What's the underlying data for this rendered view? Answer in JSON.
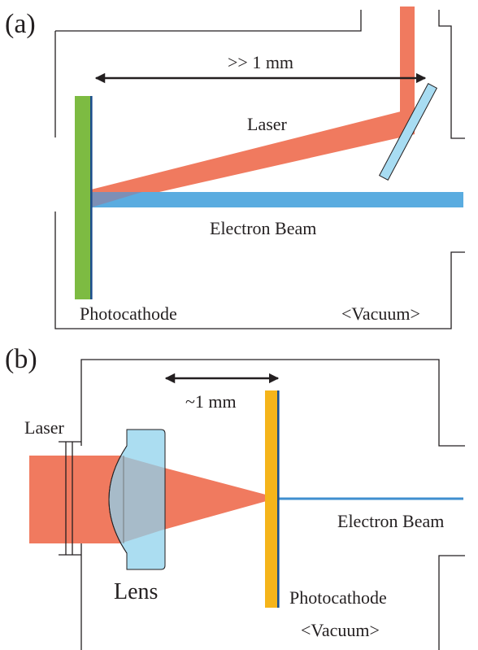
{
  "panel_a": {
    "tag": "(a)",
    "distance_label": ">> 1 mm",
    "laser_label": "Laser",
    "electron_beam_label": "Electron Beam",
    "photocathode_label": "Photocathode",
    "vacuum_label": "<Vacuum>"
  },
  "panel_b": {
    "tag": "(b)",
    "laser_label": "Laser",
    "distance_label": "~1 mm",
    "electron_beam_label": "Electron Beam",
    "lens_label": "Lens",
    "photocathode_label": "Photocathode",
    "vacuum_label": "<Vacuum>"
  },
  "colors": {
    "laser": "#f07a5f",
    "electron_beam": "#5aace0",
    "photocathode_a": "#7dbb42",
    "photocathode_b": "#f5b41a",
    "cathode_backing": "#1b4e8c",
    "mirror": "#a8dcf2",
    "lens": "#8fd2ec",
    "outline": "#231f20"
  }
}
